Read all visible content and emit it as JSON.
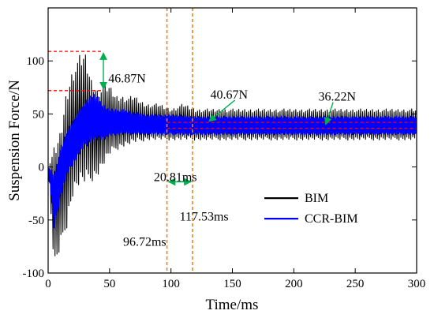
{
  "chart_data": {
    "type": "line",
    "xlabel": "Time/ms",
    "ylabel": "Suspension Force/N",
    "xlim": [
      0,
      300
    ],
    "ylim": [
      -100,
      150
    ],
    "x_ticks": [
      0,
      50,
      100,
      150,
      200,
      250,
      300
    ],
    "y_ticks": [
      -100,
      -50,
      0,
      50,
      100
    ],
    "x_tick_labels": [
      "0",
      "50",
      "100",
      "150",
      "200",
      "250",
      "300"
    ],
    "y_tick_labels": [
      "-100",
      "-50",
      "0",
      "50",
      "100"
    ],
    "grid": false,
    "legend": {
      "placement": "bottom-right",
      "entries": [
        "BIM",
        "CCR-BIM"
      ]
    },
    "series": [
      {
        "name": "BIM",
        "color": "#000000",
        "x": [
          0,
          5,
          10,
          15,
          20,
          25,
          30,
          35,
          40,
          45,
          50,
          55,
          60,
          65,
          70,
          75,
          80,
          90,
          100,
          110,
          120,
          150,
          200,
          250,
          300
        ],
        "y_max": [
          0,
          20,
          35,
          75,
          95,
          106,
          110,
          85,
          75,
          78,
          78,
          68,
          68,
          66,
          68,
          63,
          60,
          60,
          55,
          60,
          55,
          55,
          55,
          55,
          55
        ],
        "y_min": [
          0,
          -100,
          -80,
          -60,
          -30,
          -20,
          -18,
          -15,
          -10,
          0,
          10,
          15,
          18,
          20,
          22,
          23,
          25,
          25,
          25,
          25,
          25,
          25,
          25,
          25,
          25
        ],
        "steady_mean": 40.67
      },
      {
        "name": "CCR-BIM",
        "color": "#0000ff",
        "x": [
          0,
          5,
          10,
          15,
          20,
          25,
          30,
          35,
          40,
          45,
          50,
          60,
          70,
          80,
          90,
          100,
          120,
          150,
          200,
          250,
          300
        ],
        "y_max": [
          0,
          -5,
          20,
          35,
          45,
          55,
          62,
          70,
          68,
          60,
          55,
          55,
          52,
          50,
          50,
          50,
          48,
          48,
          48,
          48,
          48
        ],
        "y_min": [
          0,
          -60,
          -30,
          -10,
          0,
          10,
          18,
          22,
          24,
          25,
          28,
          30,
          30,
          30,
          30,
          30,
          30,
          30,
          30,
          30,
          30
        ],
        "steady_mean": 36.22
      }
    ],
    "reference_lines": {
      "horizontal": [
        {
          "y": 109,
          "x_from": 0,
          "x_to": 45,
          "color": "#ff0000"
        },
        {
          "y": 72,
          "x_from": 0,
          "x_to": 45,
          "color": "#ff0000"
        },
        {
          "y": 42,
          "x_from": 96.72,
          "x_to": 300,
          "color": "#ff0000"
        },
        {
          "y": 36.5,
          "x_from": 96.72,
          "x_to": 300,
          "color": "#ff0000"
        }
      ],
      "vertical": [
        {
          "x": 96.72,
          "color": "#f08020"
        },
        {
          "x": 117.53,
          "color": "#f08020"
        }
      ]
    },
    "annotations": [
      {
        "text": "46.87N"
      },
      {
        "text": "40.67N"
      },
      {
        "text": "36.22N"
      },
      {
        "text": "20.81ms"
      },
      {
        "text": "117.53ms"
      },
      {
        "text": "96.72ms"
      }
    ],
    "annotation_color": "#00b050"
  }
}
